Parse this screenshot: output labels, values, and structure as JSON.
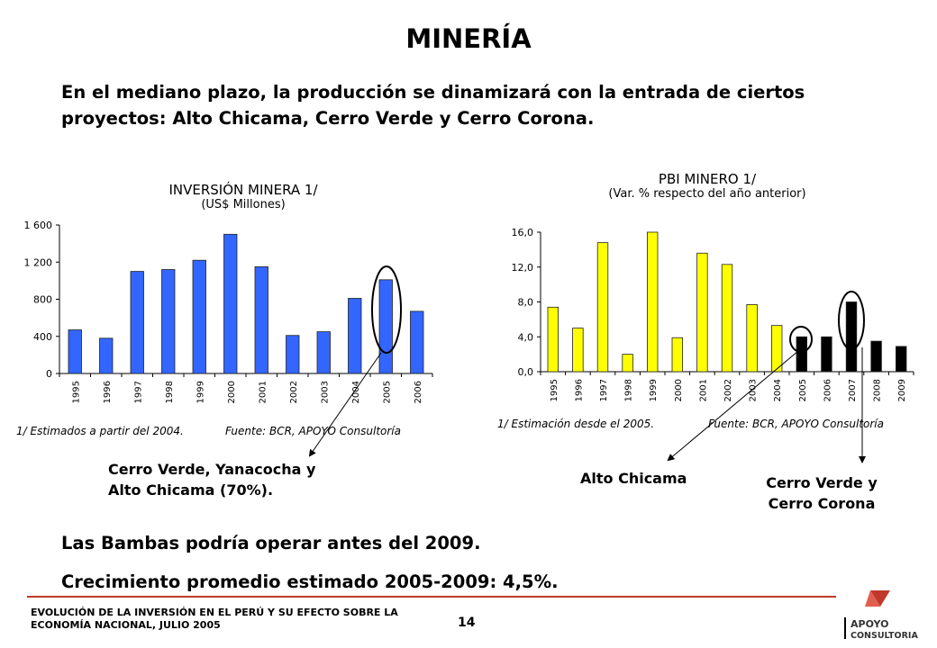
{
  "title": "MINERÍA",
  "intro": "En el mediano plazo, la producción se dinamizará con la entrada de ciertos proyectos: Alto Chicama, Cerro Verde y Cerro Corona.",
  "chart_data": [
    {
      "type": "bar",
      "title": "INVERSIÓN MINERA 1/",
      "subtitle": "(US$ Millones)",
      "categories": [
        "1995",
        "1996",
        "1997",
        "1998",
        "1999",
        "2000",
        "2001",
        "2002",
        "2003",
        "2004",
        "2005",
        "2006"
      ],
      "values": [
        470,
        380,
        1100,
        1120,
        1220,
        1500,
        1150,
        410,
        450,
        810,
        1010,
        670
      ],
      "ylim": [
        0,
        1600
      ],
      "yticks": [
        "0",
        "400",
        "800",
        "1 200",
        "1 600"
      ],
      "bar_color": "#3366ff",
      "highlight": "2005",
      "note": "1/ Estimados a partir del 2004.",
      "source": "Fuente: BCR, APOYO Consultoría"
    },
    {
      "type": "bar",
      "title": "PBI MINERO 1/",
      "subtitle": "(Var. % respecto del año anterior)",
      "categories": [
        "1995",
        "1996",
        "1997",
        "1998",
        "1999",
        "2000",
        "2001",
        "2002",
        "2003",
        "2004",
        "2005",
        "2006",
        "2007",
        "2008",
        "2009"
      ],
      "values": [
        7.4,
        5.0,
        14.8,
        2.0,
        16.0,
        3.9,
        13.6,
        12.3,
        7.7,
        5.3,
        4.0,
        4.0,
        8.0,
        3.5,
        2.9
      ],
      "ylim": [
        0,
        16
      ],
      "yticks": [
        "0,0",
        "4,0",
        "8,0",
        "12,0",
        "16,0"
      ],
      "bar_colors": [
        "#ffff00",
        "#ffff00",
        "#ffff00",
        "#ffff00",
        "#ffff00",
        "#ffff00",
        "#ffff00",
        "#ffff00",
        "#ffff00",
        "#ffff00",
        "#000000",
        "#000000",
        "#000000",
        "#000000",
        "#000000"
      ],
      "highlight": [
        "2005",
        "2007"
      ],
      "note": "1/ Estimación desde el 2005.",
      "source": "Fuente: BCR, APOYO Consultoría"
    }
  ],
  "callouts": {
    "left": [
      "Cerro Verde, Yanacocha y",
      "Alto Chicama (70%)."
    ],
    "mid": "Alto Chicama",
    "right": [
      "Cerro Verde y",
      "Cerro Corona"
    ]
  },
  "bullets": [
    "Las Bambas podría operar antes del 2009.",
    "Crecimiento promedio estimado 2005-2009: 4,5%."
  ],
  "footer": {
    "line1": "EVOLUCIÓN DE LA INVERSIÓN EN EL PERÚ Y SU EFECTO SOBRE LA",
    "line2": "ECONOMÍA NACIONAL, JULIO 2005",
    "page": "14"
  },
  "logo": {
    "line1": "APOYO",
    "line2": "CONSULTORIA",
    "color": "#c0392b"
  }
}
